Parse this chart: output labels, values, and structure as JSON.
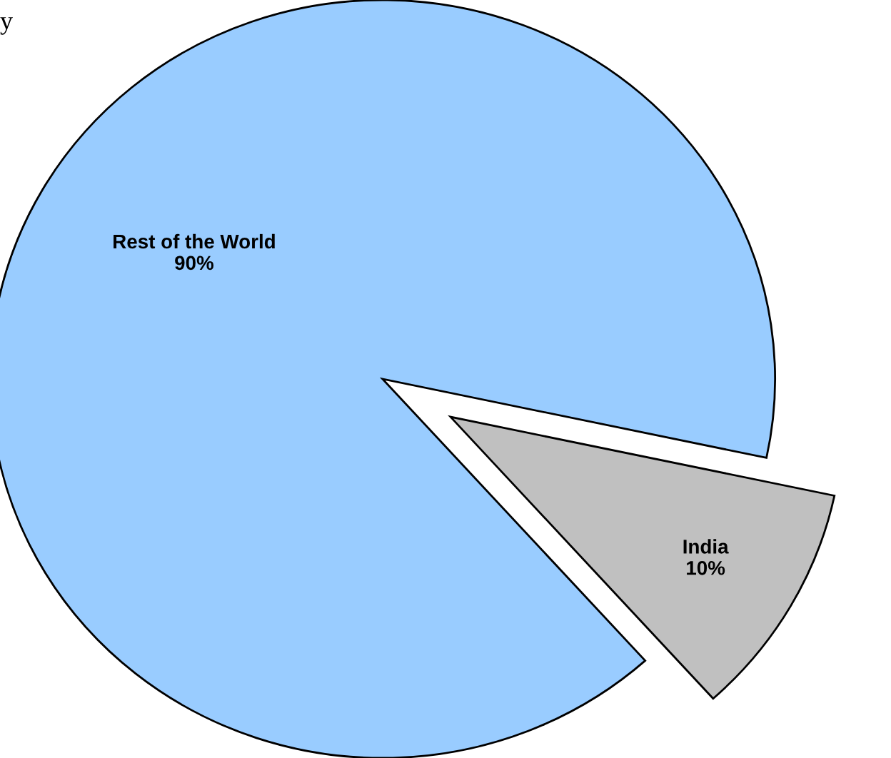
{
  "chart_data": {
    "type": "pie",
    "categories": [
      "Rest of the World",
      "India"
    ],
    "values": [
      90,
      10
    ],
    "colors": [
      "#99ccff",
      "#c0c0c0"
    ],
    "value_labels": [
      "90%",
      "10%"
    ],
    "annotations": [
      "y"
    ]
  }
}
